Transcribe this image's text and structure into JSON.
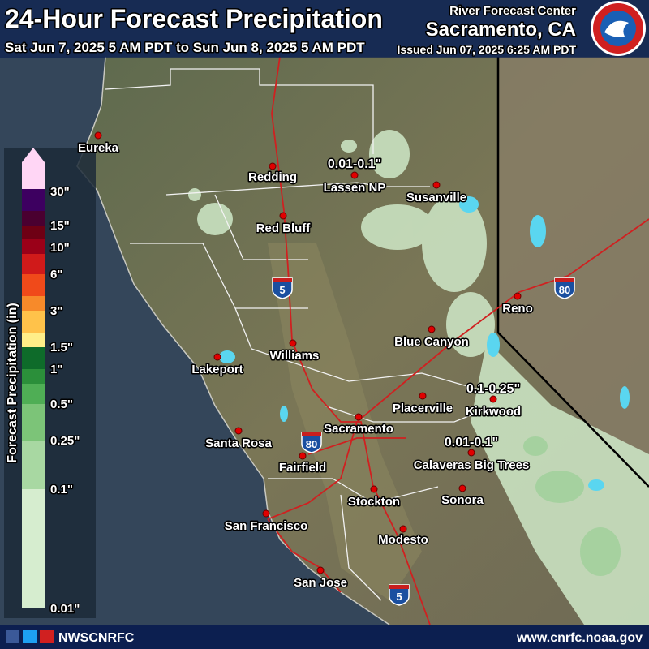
{
  "header": {
    "title": "24-Hour Forecast Precipitation",
    "period": "Sat Jun 7, 2025 5 AM PDT to Sun Jun 8, 2025 5 AM PDT",
    "office": "River Forecast Center",
    "location": "Sacramento, CA",
    "issued": "Issued Jun 07, 2025 6:25 AM PDT"
  },
  "legend": {
    "title": "Forecast Precipitation (in)",
    "labels": [
      "30\"",
      "15\"",
      "10\"",
      "6\"",
      "3\"",
      "1.5\"",
      "1\"",
      "0.5\"",
      "0.25\"",
      "0.1\"",
      "0.01\""
    ],
    "colors": [
      "#ffd6f5",
      "#3d0060",
      "#4a0030",
      "#6e0014",
      "#9a0018",
      "#d01a1a",
      "#f04a1a",
      "#f78a2a",
      "#ffc24a",
      "#ffee88",
      "#0e6b2a",
      "#2b8f3a",
      "#4fae55",
      "#7cc478",
      "#a8d8a2",
      "#d6edcf"
    ]
  },
  "cities": [
    "Eureka",
    "Redding",
    "Lassen NP",
    "Susanville",
    "Red Bluff",
    "Reno",
    "Blue Canyon",
    "Williams",
    "Lakeport",
    "Placerville",
    "Kirkwood",
    "Sacramento",
    "Santa Rosa",
    "Fairfield",
    "Calaveras Big Trees",
    "Sonora",
    "Stockton",
    "San Francisco",
    "Modesto",
    "San Jose"
  ],
  "annotations": [
    "0.01-0.1\"",
    "0.1-0.25\"",
    "0.01-0.1\""
  ],
  "highways": [
    "5",
    "80",
    "80",
    "5"
  ],
  "footer": {
    "handle": "NWSCNRFC",
    "website": "www.cnrfc.noaa.gov"
  }
}
